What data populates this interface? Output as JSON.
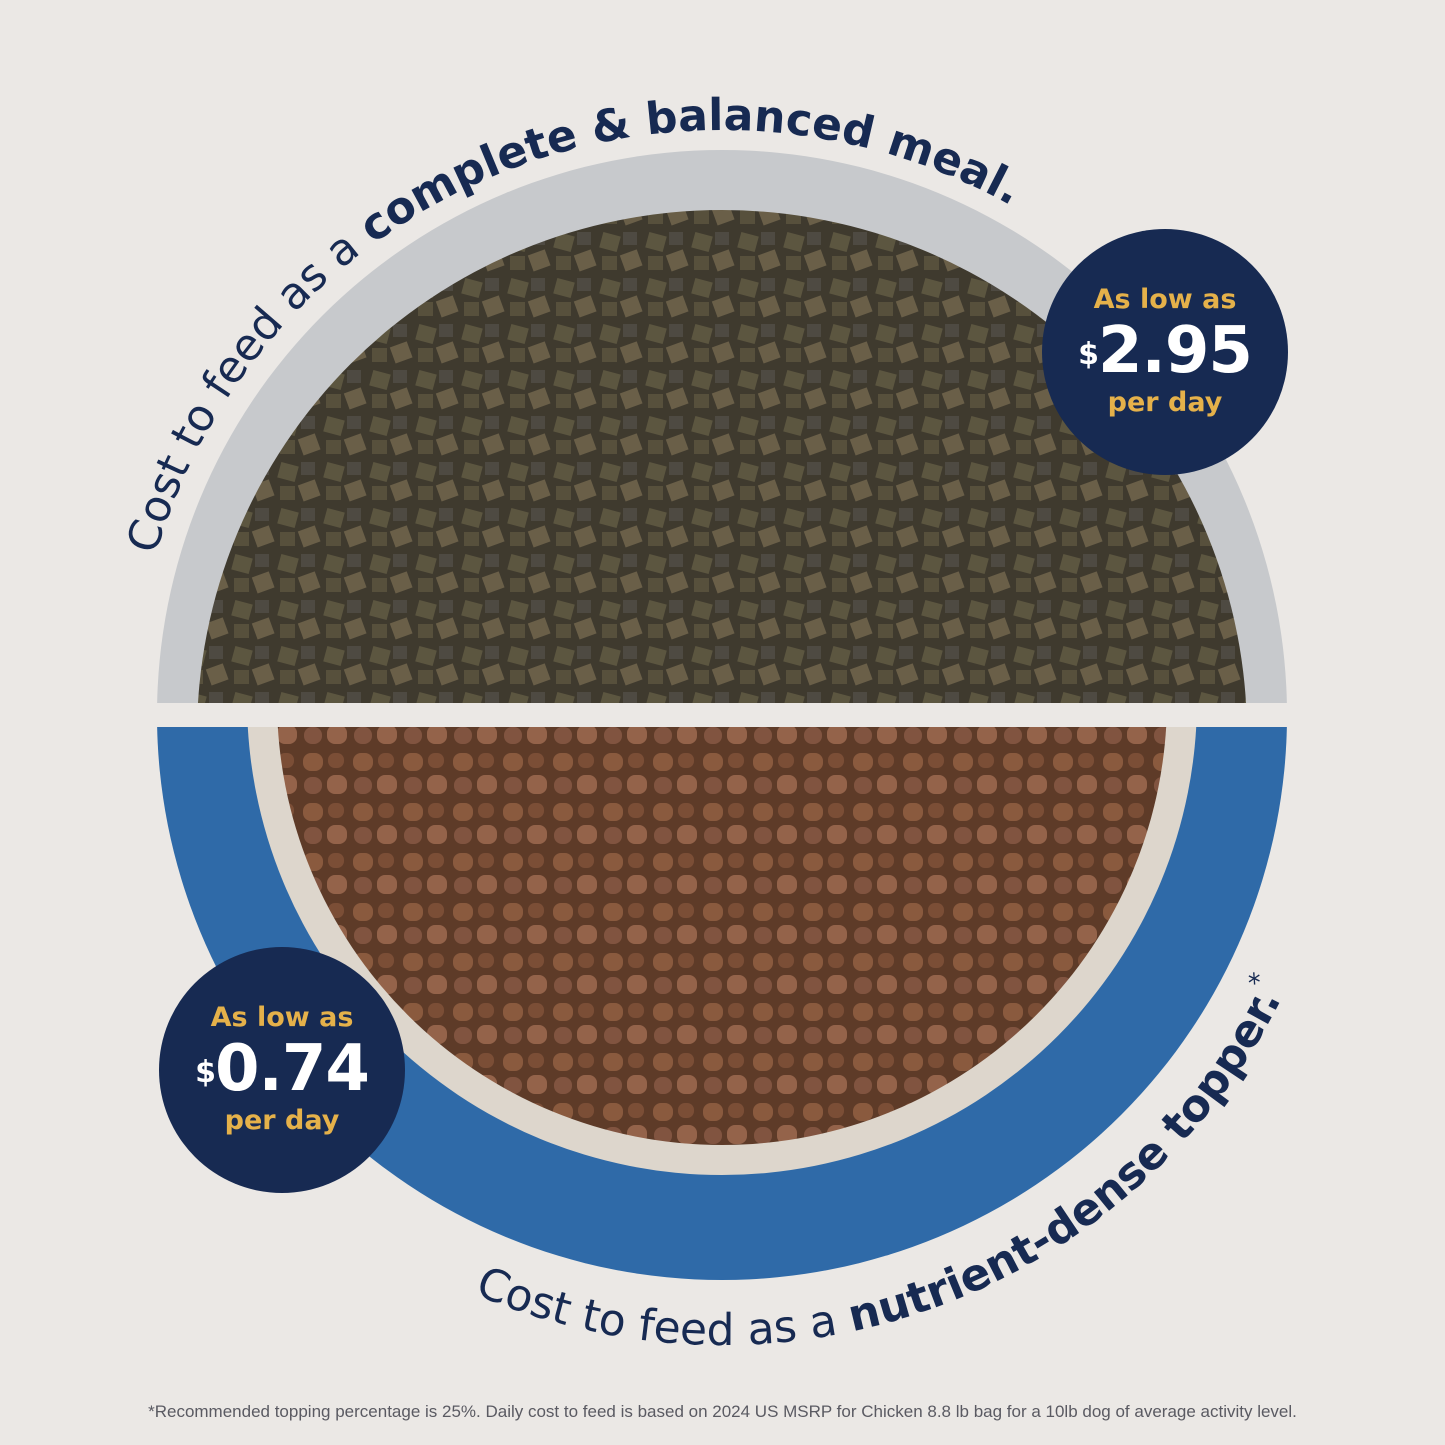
{
  "top_caption": {
    "regular": "Cost to feed as a ",
    "bold": "complete & balanced meal."
  },
  "bottom_caption": {
    "regular": "Cost to feed as a ",
    "bold": "nutrient-dense topper.",
    "mark": "*"
  },
  "badges": [
    {
      "low": "As low as",
      "currency": "$",
      "amount": "2.95",
      "per": "per day"
    },
    {
      "low": "As low as",
      "currency": "$",
      "amount": "0.74",
      "per": "per day"
    }
  ],
  "footnote": "*Recommended topping percentage is 25%. Daily cost to feed is based on 2024 US MSRP for Chicken 8.8 lb bag for a 10lb dog of average activity level.",
  "colors": {
    "navy": "#172a52",
    "gold": "#e5b14a",
    "blue_bowl": "#2f6aa8",
    "background": "#ebe8e5"
  }
}
